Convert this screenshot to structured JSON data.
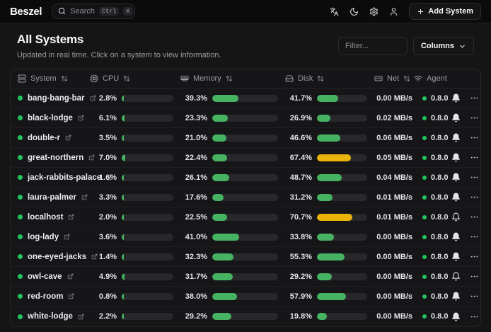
{
  "navbar": {
    "logo": "Beszel",
    "search_placeholder": "Search",
    "kbd_keys": [
      "Ctrl",
      "K"
    ],
    "icons": [
      "languages-icon",
      "moon-icon",
      "settings-icon",
      "user-icon"
    ],
    "add_system_label": "Add System"
  },
  "page": {
    "title": "All Systems",
    "subtitle": "Updated in real time. Click on a system to view information.",
    "filter_placeholder": "Filter...",
    "columns_label": "Columns"
  },
  "table": {
    "columns": [
      {
        "id": "system",
        "label": "System",
        "icon": "server-icon",
        "sortable": true
      },
      {
        "id": "cpu",
        "label": "CPU",
        "icon": "cpu-icon",
        "sortable": true
      },
      {
        "id": "memory",
        "label": "Memory",
        "icon": "memory-icon",
        "sortable": true
      },
      {
        "id": "disk",
        "label": "Disk",
        "icon": "harddrive-icon",
        "sortable": true
      },
      {
        "id": "net",
        "label": "Net",
        "icon": "ethernet-icon",
        "sortable": true
      },
      {
        "id": "agent",
        "label": "Agent",
        "icon": "wifi-icon",
        "sortable": false
      }
    ],
    "rows": [
      {
        "name": "bang-bang-bar",
        "cpu": 2.8,
        "memory": 39.3,
        "disk": 41.7,
        "net": "0.00 MB/s",
        "agent": "0.8.0",
        "alerts_configured": true
      },
      {
        "name": "black-lodge",
        "cpu": 6.1,
        "memory": 23.3,
        "disk": 26.9,
        "net": "0.02 MB/s",
        "agent": "0.8.0",
        "alerts_configured": true
      },
      {
        "name": "double-r",
        "cpu": 3.5,
        "memory": 21.0,
        "disk": 46.6,
        "net": "0.06 MB/s",
        "agent": "0.8.0",
        "alerts_configured": true
      },
      {
        "name": "great-northern",
        "cpu": 7.0,
        "memory": 22.4,
        "disk": 67.4,
        "net": "0.05 MB/s",
        "agent": "0.8.0",
        "alerts_configured": true
      },
      {
        "name": "jack-rabbits-palace",
        "cpu": 1.6,
        "memory": 26.1,
        "disk": 48.7,
        "net": "0.04 MB/s",
        "agent": "0.8.0",
        "alerts_configured": true
      },
      {
        "name": "laura-palmer",
        "cpu": 3.3,
        "memory": 17.6,
        "disk": 31.2,
        "net": "0.01 MB/s",
        "agent": "0.8.0",
        "alerts_configured": true
      },
      {
        "name": "localhost",
        "cpu": 2.0,
        "memory": 22.5,
        "disk": 70.7,
        "net": "0.01 MB/s",
        "agent": "0.8.0",
        "alerts_configured": false
      },
      {
        "name": "log-lady",
        "cpu": 3.6,
        "memory": 41.0,
        "disk": 33.8,
        "net": "0.00 MB/s",
        "agent": "0.8.0",
        "alerts_configured": true
      },
      {
        "name": "one-eyed-jacks",
        "cpu": 1.4,
        "memory": 32.3,
        "disk": 55.3,
        "net": "0.00 MB/s",
        "agent": "0.8.0",
        "alerts_configured": true
      },
      {
        "name": "owl-cave",
        "cpu": 4.9,
        "memory": 31.7,
        "disk": 29.2,
        "net": "0.00 MB/s",
        "agent": "0.8.0",
        "alerts_configured": false
      },
      {
        "name": "red-room",
        "cpu": 0.8,
        "memory": 38.0,
        "disk": 57.9,
        "net": "0.00 MB/s",
        "agent": "0.8.0",
        "alerts_configured": true
      },
      {
        "name": "white-lodge",
        "cpu": 2.2,
        "memory": 29.2,
        "disk": 19.8,
        "net": "0.00 MB/s",
        "agent": "0.8.0",
        "alerts_configured": true
      }
    ],
    "colors": {
      "status_dot": "#22c55e",
      "bar_green": "#46b362",
      "bar_amber": "#e9b308",
      "warn_threshold": 65
    }
  }
}
